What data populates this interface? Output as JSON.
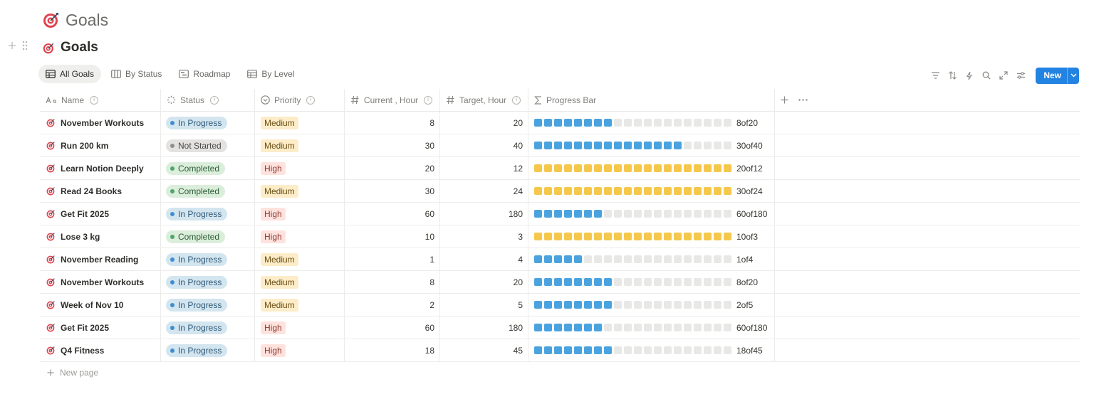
{
  "page": {
    "title": "Goals",
    "icon": "target-icon"
  },
  "database": {
    "title": "Goals",
    "views": [
      {
        "label": "All Goals",
        "icon": "table-icon",
        "active": true
      },
      {
        "label": "By Status",
        "icon": "board-icon",
        "active": false
      },
      {
        "label": "Roadmap",
        "icon": "timeline-icon",
        "active": false
      },
      {
        "label": "By Level",
        "icon": "table-icon",
        "active": false
      }
    ],
    "toolbar": {
      "icons": [
        "filter-icon",
        "sort-icon",
        "automation-icon",
        "search-icon",
        "expand-icon",
        "settings-icon"
      ],
      "new_label": "New"
    },
    "columns": [
      {
        "label": "Name",
        "icon": "text-icon"
      },
      {
        "label": "Status",
        "icon": "status-icon"
      },
      {
        "label": "Priority",
        "icon": "select-icon"
      },
      {
        "label": "Current , Hour",
        "icon": "number-icon"
      },
      {
        "label": "Target, Hour",
        "icon": "number-icon"
      },
      {
        "label": "Progress Bar",
        "icon": "formula-icon"
      }
    ],
    "progress_segments": 20,
    "rows": [
      {
        "name": "November Workouts",
        "status": "In Progress",
        "priority": "Medium",
        "current": "8",
        "target": "20",
        "progress_text": "8of20"
      },
      {
        "name": "Run 200 km",
        "status": "Not Started",
        "priority": "Medium",
        "current": "30",
        "target": "40",
        "progress_text": "30of40"
      },
      {
        "name": "Learn Notion Deeply",
        "status": "Completed",
        "priority": "High",
        "current": "20",
        "target": "12",
        "progress_text": "20of12"
      },
      {
        "name": "Read 24 Books",
        "status": "Completed",
        "priority": "Medium",
        "current": "30",
        "target": "24",
        "progress_text": "30of24"
      },
      {
        "name": "Get Fit 2025",
        "status": "In Progress",
        "priority": "High",
        "current": "60",
        "target": "180",
        "progress_text": "60of180"
      },
      {
        "name": "Lose 3 kg",
        "status": "Completed",
        "priority": "High",
        "current": "10",
        "target": "3",
        "progress_text": "10of3"
      },
      {
        "name": "November Reading",
        "status": "In Progress",
        "priority": "Medium",
        "current": "1",
        "target": "4",
        "progress_text": "1of4"
      },
      {
        "name": "November Workouts",
        "status": "In Progress",
        "priority": "Medium",
        "current": "8",
        "target": "20",
        "progress_text": "8of20"
      },
      {
        "name": "Week of Nov 10",
        "status": "In Progress",
        "priority": "Medium",
        "current": "2",
        "target": "5",
        "progress_text": "2of5"
      },
      {
        "name": "Get Fit 2025",
        "status": "In Progress",
        "priority": "High",
        "current": "60",
        "target": "180",
        "progress_text": "60of180"
      },
      {
        "name": "Q4 Fitness",
        "status": "In Progress",
        "priority": "High",
        "current": "18",
        "target": "45",
        "progress_text": "18of45"
      }
    ],
    "new_page_label": "New page",
    "colors": {
      "accent": "#2383e2",
      "progress_blue": "#4aa3df",
      "progress_yellow": "#f5c84c",
      "progress_empty": "#e8e8e6"
    }
  }
}
